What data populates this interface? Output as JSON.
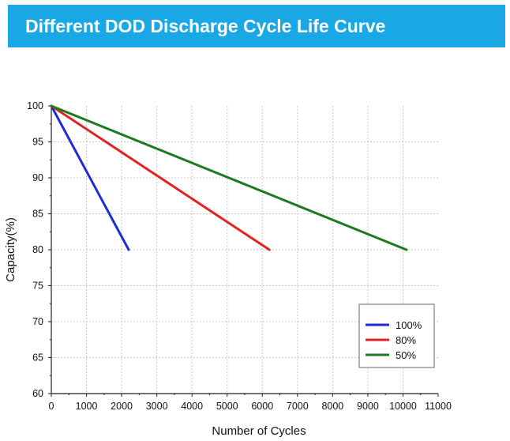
{
  "chart_data": {
    "type": "line",
    "title": "Different DOD Discharge Cycle Life Curve",
    "xlabel": "Number of Cycles",
    "ylabel": "Capacity(%)",
    "xlim": [
      0,
      11000
    ],
    "ylim": [
      60,
      100
    ],
    "xticks": [
      "0",
      "1000",
      "2000",
      "3000",
      "4000",
      "5000",
      "6000",
      "7000",
      "8000",
      "9000",
      "10000",
      "11000"
    ],
    "yticks": [
      "60",
      "65",
      "70",
      "75",
      "80",
      "85",
      "90",
      "95",
      "100"
    ],
    "grid": true,
    "legend_position": "bottom-right",
    "series": [
      {
        "name": "100%",
        "color": "#1f2bd6",
        "x": [
          0,
          2200
        ],
        "y": [
          100,
          80
        ]
      },
      {
        "name": "80%",
        "color": "#e02424",
        "x": [
          0,
          6200
        ],
        "y": [
          100,
          80
        ]
      },
      {
        "name": "50%",
        "color": "#1d7a1d",
        "x": [
          0,
          10100
        ],
        "y": [
          100,
          80
        ]
      }
    ]
  }
}
